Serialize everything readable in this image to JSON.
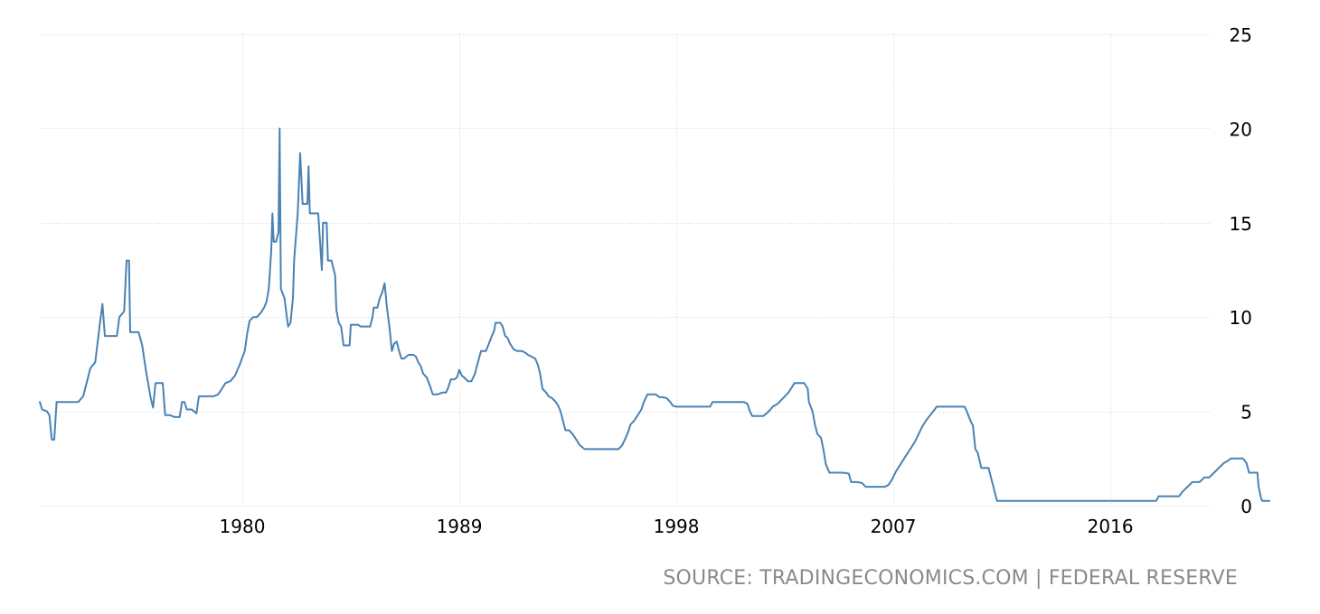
{
  "chart_data": {
    "type": "line",
    "title": "",
    "xlabel": "",
    "ylabel": "",
    "xlim": [
      1971.6,
      2020.8
    ],
    "ylim": [
      0,
      25
    ],
    "grid": true,
    "legend": "none",
    "x_ticks": [
      1980,
      1989,
      1998,
      2007,
      2016
    ],
    "x_tick_labels": [
      "1980",
      "1989",
      "1998",
      "2007",
      "2016"
    ],
    "y_ticks": [
      0,
      5,
      10,
      15,
      20,
      25
    ],
    "y_tick_labels": [
      "0",
      "5",
      "10",
      "15",
      "20",
      "25"
    ],
    "line_color": "#4a82b4",
    "series": [
      {
        "values": [
          [
            1971.6,
            5.5
          ],
          [
            1971.7,
            5.1
          ],
          [
            1971.9,
            5.0
          ],
          [
            1972.0,
            4.8
          ],
          [
            1972.1,
            3.5
          ],
          [
            1972.2,
            3.5
          ],
          [
            1972.3,
            5.5
          ],
          [
            1972.5,
            5.5
          ],
          [
            1973.2,
            5.5
          ],
          [
            1973.4,
            5.8
          ],
          [
            1973.7,
            7.3
          ],
          [
            1973.9,
            7.6
          ],
          [
            1974.1,
            9.7
          ],
          [
            1974.2,
            10.7
          ],
          [
            1974.3,
            9.0
          ],
          [
            1974.5,
            9.0
          ],
          [
            1974.8,
            9.0
          ],
          [
            1974.9,
            10.0
          ],
          [
            1975.1,
            10.3
          ],
          [
            1975.2,
            13.0
          ],
          [
            1975.3,
            13.0
          ],
          [
            1975.35,
            9.2
          ],
          [
            1975.5,
            9.2
          ],
          [
            1975.7,
            9.2
          ],
          [
            1975.85,
            8.5
          ],
          [
            1976.0,
            7.2
          ],
          [
            1976.2,
            5.7
          ],
          [
            1976.3,
            5.2
          ],
          [
            1976.4,
            6.5
          ],
          [
            1976.5,
            6.5
          ],
          [
            1976.7,
            6.5
          ],
          [
            1976.8,
            4.8
          ],
          [
            1977.0,
            4.8
          ],
          [
            1977.2,
            4.7
          ],
          [
            1977.4,
            4.7
          ],
          [
            1977.5,
            5.5
          ],
          [
            1977.6,
            5.5
          ],
          [
            1977.7,
            5.1
          ],
          [
            1977.9,
            5.1
          ],
          [
            1978.1,
            4.9
          ],
          [
            1978.2,
            5.8
          ],
          [
            1978.5,
            5.8
          ],
          [
            1978.8,
            5.8
          ],
          [
            1979.0,
            5.9
          ],
          [
            1979.2,
            6.3
          ],
          [
            1979.3,
            6.5
          ],
          [
            1979.5,
            6.6
          ],
          [
            1979.7,
            6.9
          ],
          [
            1979.9,
            7.5
          ],
          [
            1980.1,
            8.2
          ],
          [
            1980.2,
            9.1
          ],
          [
            1980.3,
            9.8
          ],
          [
            1980.45,
            10.0
          ],
          [
            1980.6,
            10.0
          ],
          [
            1980.75,
            10.2
          ],
          [
            1980.9,
            10.5
          ],
          [
            1981.0,
            10.8
          ],
          [
            1981.1,
            11.5
          ],
          [
            1981.2,
            13.5
          ],
          [
            1981.25,
            15.5
          ],
          [
            1981.3,
            14.0
          ],
          [
            1981.4,
            14.0
          ],
          [
            1981.5,
            14.5
          ],
          [
            1981.55,
            20.0
          ],
          [
            1981.6,
            11.5
          ],
          [
            1981.75,
            11.0
          ],
          [
            1981.85,
            10.0
          ],
          [
            1981.9,
            9.5
          ],
          [
            1982.0,
            9.7
          ],
          [
            1982.1,
            11.0
          ],
          [
            1982.15,
            13.0
          ],
          [
            1982.3,
            15.5
          ],
          [
            1982.4,
            18.7
          ],
          [
            1982.5,
            16.0
          ],
          [
            1982.6,
            16.0
          ],
          [
            1982.7,
            16.0
          ],
          [
            1982.75,
            18.0
          ],
          [
            1982.8,
            15.5
          ],
          [
            1982.9,
            15.5
          ],
          [
            1983.0,
            15.5
          ],
          [
            1983.15,
            15.5
          ],
          [
            1983.2,
            14.5
          ],
          [
            1983.3,
            12.5
          ],
          [
            1983.35,
            15.0
          ],
          [
            1983.5,
            15.0
          ],
          [
            1983.55,
            13.0
          ],
          [
            1983.7,
            13.0
          ],
          [
            1983.85,
            12.2
          ],
          [
            1983.9,
            10.4
          ],
          [
            1984.0,
            9.7
          ],
          [
            1984.1,
            9.5
          ],
          [
            1984.2,
            8.5
          ],
          [
            1984.3,
            8.5
          ],
          [
            1984.45,
            8.5
          ],
          [
            1984.5,
            9.6
          ],
          [
            1984.7,
            9.6
          ],
          [
            1984.8,
            9.6
          ],
          [
            1984.9,
            9.5
          ],
          [
            1985.1,
            9.5
          ],
          [
            1985.3,
            9.5
          ],
          [
            1985.4,
            10.0
          ],
          [
            1985.45,
            10.5
          ],
          [
            1985.6,
            10.5
          ],
          [
            1985.7,
            11.0
          ],
          [
            1985.8,
            11.3
          ],
          [
            1985.9,
            11.8
          ],
          [
            1986.0,
            10.5
          ],
          [
            1986.1,
            9.5
          ],
          [
            1986.2,
            8.2
          ],
          [
            1986.3,
            8.6
          ],
          [
            1986.4,
            8.7
          ],
          [
            1986.5,
            8.2
          ],
          [
            1986.6,
            7.8
          ],
          [
            1986.7,
            7.8
          ],
          [
            1986.8,
            7.9
          ],
          [
            1986.9,
            8.0
          ],
          [
            1987.1,
            8.0
          ],
          [
            1987.2,
            7.9
          ],
          [
            1987.3,
            7.6
          ],
          [
            1987.4,
            7.4
          ],
          [
            1987.5,
            7.0
          ],
          [
            1987.65,
            6.8
          ],
          [
            1987.8,
            6.3
          ],
          [
            1987.9,
            5.9
          ],
          [
            1988.1,
            5.9
          ],
          [
            1988.3,
            6.0
          ],
          [
            1988.45,
            6.0
          ],
          [
            1988.55,
            6.3
          ],
          [
            1988.65,
            6.7
          ],
          [
            1988.8,
            6.7
          ],
          [
            1988.9,
            6.8
          ],
          [
            1989.0,
            7.2
          ],
          [
            1989.1,
            6.9
          ],
          [
            1989.2,
            6.8
          ],
          [
            1989.35,
            6.6
          ],
          [
            1989.5,
            6.6
          ],
          [
            1989.65,
            7.0
          ],
          [
            1989.75,
            7.5
          ],
          [
            1989.9,
            8.2
          ],
          [
            1990.1,
            8.2
          ],
          [
            1990.2,
            8.5
          ],
          [
            1990.35,
            9.0
          ],
          [
            1990.45,
            9.3
          ],
          [
            1990.5,
            9.7
          ],
          [
            1990.7,
            9.7
          ],
          [
            1990.8,
            9.5
          ],
          [
            1990.9,
            9.0
          ],
          [
            1991.0,
            8.9
          ],
          [
            1991.1,
            8.6
          ],
          [
            1991.25,
            8.3
          ],
          [
            1991.4,
            8.2
          ],
          [
            1991.6,
            8.2
          ],
          [
            1991.75,
            8.1
          ],
          [
            1991.85,
            8.0
          ],
          [
            1992.0,
            7.9
          ],
          [
            1992.15,
            7.8
          ],
          [
            1992.25,
            7.5
          ],
          [
            1992.35,
            7.0
          ],
          [
            1992.45,
            6.2
          ],
          [
            1992.6,
            6.0
          ],
          [
            1992.7,
            5.8
          ],
          [
            1992.85,
            5.7
          ],
          [
            1993.0,
            5.5
          ],
          [
            1993.1,
            5.3
          ],
          [
            1993.2,
            5.0
          ],
          [
            1993.3,
            4.5
          ],
          [
            1993.4,
            4.0
          ],
          [
            1993.55,
            4.0
          ],
          [
            1993.7,
            3.8
          ],
          [
            1993.85,
            3.5
          ],
          [
            1994.0,
            3.2
          ],
          [
            1994.2,
            3.0
          ],
          [
            1994.5,
            3.0
          ],
          [
            1994.8,
            3.0
          ],
          [
            1995.1,
            3.0
          ],
          [
            1995.4,
            3.0
          ],
          [
            1995.6,
            3.0
          ],
          [
            1995.75,
            3.2
          ],
          [
            1995.9,
            3.6
          ],
          [
            1996.0,
            3.9
          ],
          [
            1996.1,
            4.3
          ],
          [
            1996.25,
            4.5
          ],
          [
            1996.4,
            4.8
          ],
          [
            1996.55,
            5.1
          ],
          [
            1996.65,
            5.5
          ],
          [
            1996.8,
            5.9
          ],
          [
            1997.0,
            5.9
          ],
          [
            1997.15,
            5.9
          ],
          [
            1997.3,
            5.75
          ],
          [
            1997.45,
            5.75
          ],
          [
            1997.6,
            5.7
          ],
          [
            1997.75,
            5.5
          ],
          [
            1997.85,
            5.3
          ],
          [
            1998.0,
            5.25
          ],
          [
            1998.3,
            5.25
          ],
          [
            1998.6,
            5.25
          ],
          [
            1998.9,
            5.25
          ],
          [
            1999.2,
            5.25
          ],
          [
            1999.4,
            5.25
          ],
          [
            1999.5,
            5.5
          ],
          [
            1999.7,
            5.5
          ],
          [
            2000.0,
            5.5
          ],
          [
            2000.3,
            5.5
          ],
          [
            2000.6,
            5.5
          ],
          [
            2000.8,
            5.5
          ],
          [
            2000.95,
            5.4
          ],
          [
            2001.05,
            5.0
          ],
          [
            2001.15,
            4.75
          ],
          [
            2001.4,
            4.75
          ],
          [
            2001.6,
            4.75
          ],
          [
            2001.75,
            4.9
          ],
          [
            2001.9,
            5.1
          ],
          [
            2002.0,
            5.25
          ],
          [
            2002.2,
            5.4
          ],
          [
            2002.35,
            5.6
          ],
          [
            2002.5,
            5.8
          ],
          [
            2002.65,
            6.0
          ],
          [
            2002.8,
            6.3
          ],
          [
            2002.9,
            6.5
          ],
          [
            2003.1,
            6.5
          ],
          [
            2003.3,
            6.5
          ],
          [
            2003.45,
            6.2
          ],
          [
            2003.5,
            5.5
          ],
          [
            2003.65,
            5.0
          ],
          [
            2003.75,
            4.3
          ],
          [
            2003.85,
            3.8
          ],
          [
            2004.0,
            3.6
          ],
          [
            2004.1,
            3.0
          ],
          [
            2004.2,
            2.2
          ],
          [
            2004.35,
            1.75
          ],
          [
            2004.6,
            1.75
          ],
          [
            2004.9,
            1.75
          ],
          [
            2005.15,
            1.7
          ],
          [
            2005.25,
            1.25
          ],
          [
            2005.5,
            1.25
          ],
          [
            2005.7,
            1.2
          ],
          [
            2005.85,
            1.0
          ],
          [
            2006.1,
            1.0
          ],
          [
            2006.4,
            1.0
          ],
          [
            2006.65,
            1.0
          ],
          [
            2006.8,
            1.1
          ],
          [
            2006.95,
            1.4
          ],
          [
            2007.1,
            1.8
          ],
          [
            2007.3,
            2.2
          ],
          [
            2007.5,
            2.6
          ],
          [
            2007.7,
            3.0
          ],
          [
            2007.9,
            3.4
          ],
          [
            2008.05,
            3.8
          ],
          [
            2008.2,
            4.2
          ],
          [
            2008.35,
            4.5
          ],
          [
            2008.5,
            4.75
          ],
          [
            2008.65,
            5.0
          ],
          [
            2008.8,
            5.25
          ],
          [
            2009.1,
            5.25
          ],
          [
            2009.4,
            5.25
          ],
          [
            2009.7,
            5.25
          ],
          [
            2009.95,
            5.25
          ],
          [
            2010.05,
            5.0
          ],
          [
            2010.2,
            4.5
          ],
          [
            2010.3,
            4.25
          ],
          [
            2010.4,
            3.0
          ],
          [
            2010.5,
            2.8
          ],
          [
            2010.65,
            2.0
          ],
          [
            2010.8,
            2.0
          ],
          [
            2010.95,
            2.0
          ],
          [
            2011.05,
            1.5
          ],
          [
            2011.15,
            1.0
          ],
          [
            2011.25,
            0.5
          ],
          [
            2011.3,
            0.25
          ],
          [
            2012.0,
            0.25
          ],
          [
            2013.0,
            0.25
          ],
          [
            2014.0,
            0.25
          ],
          [
            2015.0,
            0.25
          ],
          [
            2016.0,
            0.25
          ],
          [
            2017.0,
            0.25
          ],
          [
            2017.9,
            0.25
          ],
          [
            2018.0,
            0.5
          ],
          [
            2018.5,
            0.5
          ],
          [
            2018.85,
            0.5
          ],
          [
            2019.0,
            0.75
          ],
          [
            2019.2,
            1.0
          ],
          [
            2019.4,
            1.25
          ],
          [
            2019.7,
            1.25
          ],
          [
            2019.9,
            1.5
          ],
          [
            2020.1,
            1.5
          ],
          [
            2020.3,
            1.75
          ],
          [
            2020.5,
            2.0
          ],
          [
            2020.7,
            2.25
          ],
          [
            2020.9,
            2.4
          ],
          [
            2021.0,
            2.5
          ],
          [
            2021.3,
            2.5
          ],
          [
            2021.5,
            2.5
          ],
          [
            2021.65,
            2.25
          ],
          [
            2021.75,
            1.75
          ],
          [
            2021.9,
            1.75
          ],
          [
            2022.1,
            1.75
          ],
          [
            2022.15,
            1.0
          ],
          [
            2022.25,
            0.4
          ],
          [
            2022.3,
            0.25
          ],
          [
            2022.6,
            0.25
          ]
        ]
      }
    ]
  },
  "footer": {
    "source": "SOURCE: TRADINGECONOMICS.COM | FEDERAL RESERVE"
  }
}
